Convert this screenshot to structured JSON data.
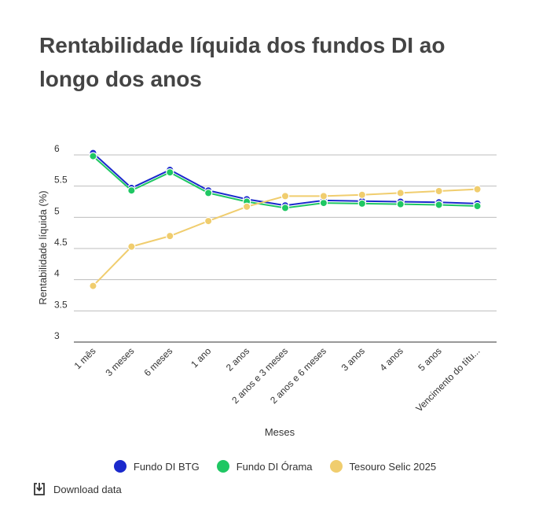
{
  "title": "Rentabilidade líquida dos fundos DI ao longo dos anos",
  "download_label": "Download data",
  "chart_data": {
    "type": "line",
    "xlabel": "Meses",
    "ylabel": "Rentabilidade líquida (%)",
    "ylim": [
      3,
      6
    ],
    "yticks": [
      6,
      5.5,
      5,
      4.5,
      4,
      3.5,
      3
    ],
    "ytick_labels": [
      "6",
      "5.5",
      "5",
      "4.5",
      "4",
      "3.5",
      "3"
    ],
    "grid": true,
    "legend_position": "bottom",
    "categories": [
      "1 mês",
      "3 meses",
      "6 meses",
      "1 ano",
      "2 anos",
      "2 anos e 3 meses",
      "2 anos e 6 meses",
      "3 anos",
      "4 anos",
      "5 anos",
      "Vencimento do títu..."
    ],
    "series": [
      {
        "name": "Fundo DI BTG",
        "color": "#1a29cc",
        "values": [
          6.03,
          5.47,
          5.76,
          5.43,
          5.29,
          5.19,
          5.27,
          5.26,
          5.25,
          5.24,
          5.22
        ]
      },
      {
        "name": "Fundo DI Órama",
        "color": "#1fc763",
        "values": [
          5.98,
          5.43,
          5.72,
          5.39,
          5.25,
          5.15,
          5.23,
          5.22,
          5.21,
          5.2,
          5.18
        ]
      },
      {
        "name": "Tesouro Selic 2025",
        "color": "#f0cd6e",
        "values": [
          3.9,
          4.53,
          4.7,
          4.94,
          5.17,
          5.34,
          5.34,
          5.36,
          5.39,
          5.42,
          5.45
        ]
      }
    ]
  }
}
